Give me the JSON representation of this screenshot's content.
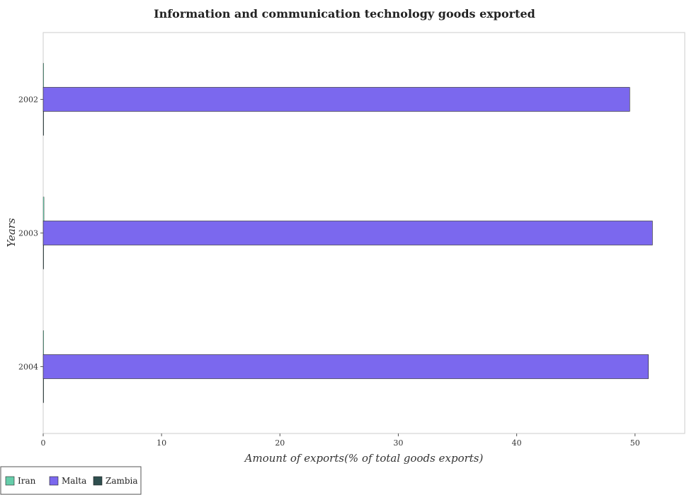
{
  "chart_data": {
    "type": "bar",
    "orientation": "horizontal",
    "title": "Information and communication technology goods exported",
    "xlabel": "Amount of exports(% of total goods exports)",
    "ylabel": "Years",
    "categories": [
      "2002",
      "2003",
      "2004"
    ],
    "x_ticks": [
      0,
      10,
      20,
      30,
      40,
      50
    ],
    "xlim": [
      0,
      54.2
    ],
    "series": [
      {
        "name": "Iran",
        "color": "#66cdaa",
        "values": [
          0.04,
          0.07,
          0.01
        ]
      },
      {
        "name": "Malta",
        "color": "#7b68ee",
        "values": [
          49.55,
          51.47,
          51.13
        ]
      },
      {
        "name": "Zambia",
        "color": "#2f4f4f",
        "values": [
          0.01,
          0.01,
          0.03
        ]
      }
    ],
    "legend_position": "bottom-left",
    "grid": false
  }
}
